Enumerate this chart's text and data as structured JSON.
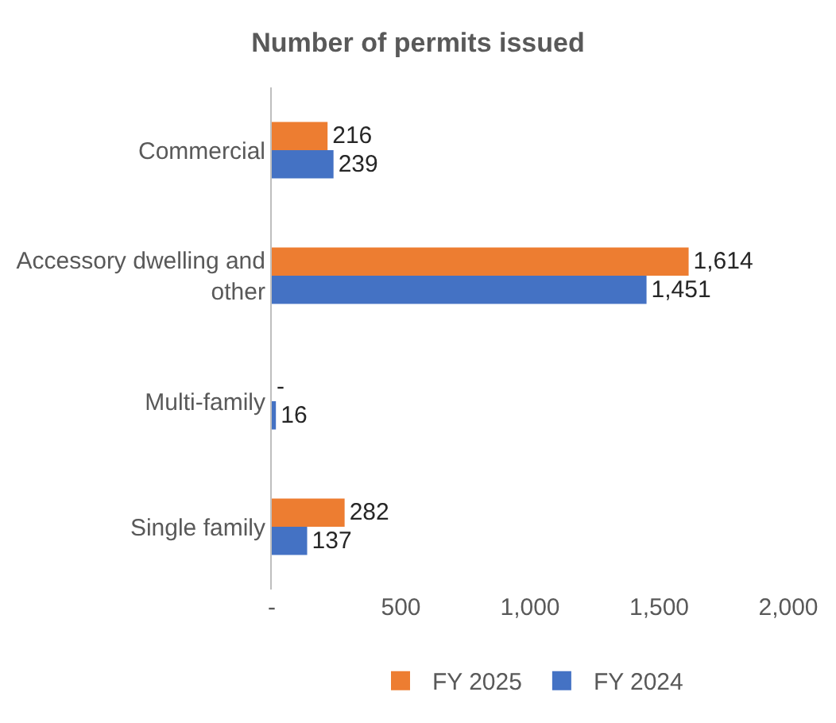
{
  "chart_data": {
    "type": "bar",
    "orientation": "horizontal",
    "title": "Number of permits issued",
    "categories": [
      "Commercial",
      "Accessory dwelling and other",
      "Multi-family",
      "Single family"
    ],
    "series": [
      {
        "name": "FY 2025",
        "color": "#ed7d31",
        "values": [
          216,
          1614,
          0,
          282
        ],
        "value_labels": [
          "216",
          "1,614",
          "-",
          "282"
        ]
      },
      {
        "name": "FY 2024",
        "color": "#4472c4",
        "values": [
          239,
          1451,
          16,
          137
        ],
        "value_labels": [
          "239",
          "1,451",
          "16",
          "137"
        ]
      }
    ],
    "xlim": [
      0,
      2000
    ],
    "xticks": [
      {
        "value": 0,
        "label": "-"
      },
      500,
      {
        "value": 1000,
        "label": "1,000"
      },
      {
        "value": 1500,
        "label": "1,500"
      },
      {
        "value": 2000,
        "label": "2,000"
      }
    ],
    "grid": false,
    "legend": "bottom"
  }
}
